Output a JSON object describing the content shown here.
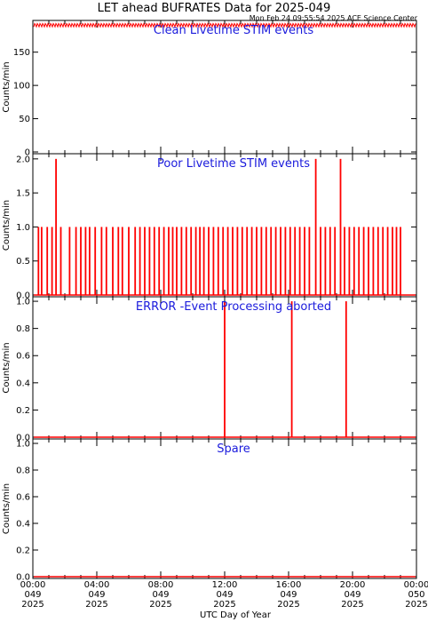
{
  "title": "LET ahead BUFRATES Data for 2025-049",
  "timestamp": "Mon Feb 24 09:55:54 2025 ACE Science Center",
  "xlabel": "UTC Day of Year",
  "colors": {
    "data": "#ff0000",
    "panel_label": "#1a1adc",
    "axes": "#000000"
  },
  "chart_data": [
    {
      "type": "line",
      "label": "Clean Livetime STIM events",
      "ylabel": "Counts/min",
      "ylim": [
        0,
        195
      ],
      "yticks": [
        0,
        50,
        100,
        150
      ],
      "ytick_labels": [
        "0",
        "50",
        "100",
        "150"
      ],
      "xlim_hours": [
        0,
        24
      ],
      "baseline": 191,
      "noise_band": [
        188,
        193
      ],
      "spikes": []
    },
    {
      "type": "line",
      "label": "Poor Livetime STIM events",
      "ylabel": "Counts/min",
      "ylim": [
        0,
        2.05
      ],
      "yticks": [
        0,
        0.5,
        1.0,
        1.5,
        2.0
      ],
      "ytick_labels": [
        "0.0",
        "0.5",
        "1.0",
        "1.5",
        "2.0"
      ],
      "xlim_hours": [
        0,
        24
      ],
      "baseline": 0,
      "spikes": [
        {
          "hour": 0.35,
          "value": 1
        },
        {
          "hour": 0.55,
          "value": 1
        },
        {
          "hour": 0.9,
          "value": 1
        },
        {
          "hour": 1.2,
          "value": 1
        },
        {
          "hour": 1.45,
          "value": 2
        },
        {
          "hour": 1.75,
          "value": 1
        },
        {
          "hour": 2.3,
          "value": 1
        },
        {
          "hour": 2.7,
          "value": 1
        },
        {
          "hour": 3.0,
          "value": 1
        },
        {
          "hour": 3.3,
          "value": 1
        },
        {
          "hour": 3.55,
          "value": 1
        },
        {
          "hour": 3.9,
          "value": 1
        },
        {
          "hour": 4.3,
          "value": 1
        },
        {
          "hour": 4.6,
          "value": 1
        },
        {
          "hour": 5.0,
          "value": 1
        },
        {
          "hour": 5.35,
          "value": 1
        },
        {
          "hour": 5.6,
          "value": 1
        },
        {
          "hour": 6.0,
          "value": 1
        },
        {
          "hour": 6.4,
          "value": 1
        },
        {
          "hour": 6.7,
          "value": 1
        },
        {
          "hour": 7.0,
          "value": 1
        },
        {
          "hour": 7.3,
          "value": 1
        },
        {
          "hour": 7.6,
          "value": 1
        },
        {
          "hour": 7.9,
          "value": 1
        },
        {
          "hour": 8.2,
          "value": 1
        },
        {
          "hour": 8.5,
          "value": 1
        },
        {
          "hour": 8.75,
          "value": 1
        },
        {
          "hour": 9.0,
          "value": 1
        },
        {
          "hour": 9.3,
          "value": 1
        },
        {
          "hour": 9.6,
          "value": 1
        },
        {
          "hour": 9.9,
          "value": 1
        },
        {
          "hour": 10.2,
          "value": 1
        },
        {
          "hour": 10.45,
          "value": 1
        },
        {
          "hour": 10.7,
          "value": 1
        },
        {
          "hour": 11.0,
          "value": 1
        },
        {
          "hour": 11.3,
          "value": 1
        },
        {
          "hour": 11.6,
          "value": 1
        },
        {
          "hour": 11.9,
          "value": 1
        },
        {
          "hour": 12.2,
          "value": 1
        },
        {
          "hour": 12.5,
          "value": 1
        },
        {
          "hour": 12.8,
          "value": 1
        },
        {
          "hour": 13.1,
          "value": 1
        },
        {
          "hour": 13.4,
          "value": 1
        },
        {
          "hour": 13.7,
          "value": 1
        },
        {
          "hour": 14.0,
          "value": 1
        },
        {
          "hour": 14.3,
          "value": 1
        },
        {
          "hour": 14.6,
          "value": 1
        },
        {
          "hour": 14.9,
          "value": 1
        },
        {
          "hour": 15.2,
          "value": 1
        },
        {
          "hour": 15.5,
          "value": 1
        },
        {
          "hour": 15.8,
          "value": 1
        },
        {
          "hour": 16.1,
          "value": 1
        },
        {
          "hour": 16.4,
          "value": 1
        },
        {
          "hour": 16.7,
          "value": 1
        },
        {
          "hour": 17.0,
          "value": 1
        },
        {
          "hour": 17.3,
          "value": 1
        },
        {
          "hour": 17.7,
          "value": 2
        },
        {
          "hour": 18.0,
          "value": 1
        },
        {
          "hour": 18.3,
          "value": 1
        },
        {
          "hour": 18.6,
          "value": 1
        },
        {
          "hour": 18.9,
          "value": 1
        },
        {
          "hour": 19.25,
          "value": 2
        },
        {
          "hour": 19.5,
          "value": 1
        },
        {
          "hour": 19.8,
          "value": 1
        },
        {
          "hour": 20.1,
          "value": 1
        },
        {
          "hour": 20.4,
          "value": 1
        },
        {
          "hour": 20.7,
          "value": 1
        },
        {
          "hour": 21.0,
          "value": 1
        },
        {
          "hour": 21.3,
          "value": 1
        },
        {
          "hour": 21.6,
          "value": 1
        },
        {
          "hour": 21.9,
          "value": 1
        },
        {
          "hour": 22.2,
          "value": 1
        },
        {
          "hour": 22.5,
          "value": 1
        },
        {
          "hour": 22.75,
          "value": 1
        },
        {
          "hour": 23.0,
          "value": 1
        }
      ]
    },
    {
      "type": "line",
      "label": "ERROR -Event Processing aborted",
      "ylabel": "Counts/min",
      "ylim": [
        0,
        1.02
      ],
      "yticks": [
        0,
        0.2,
        0.4,
        0.6,
        0.8,
        1.0
      ],
      "ytick_labels": [
        "0.0",
        "0.2",
        "0.4",
        "0.6",
        "0.8",
        "1.0"
      ],
      "xlim_hours": [
        0,
        24
      ],
      "baseline": 0,
      "spikes": [
        {
          "hour": 12.0,
          "value": 1
        },
        {
          "hour": 16.2,
          "value": 1
        },
        {
          "hour": 19.6,
          "value": 1
        }
      ]
    },
    {
      "type": "line",
      "label": "Spare",
      "ylabel": "Counts/min",
      "ylim": [
        0,
        1.02
      ],
      "yticks": [
        0,
        0.2,
        0.4,
        0.6,
        0.8,
        1.0
      ],
      "ytick_labels": [
        "0.0",
        "0.2",
        "0.4",
        "0.6",
        "0.8",
        "1.0"
      ],
      "xlim_hours": [
        0,
        24
      ],
      "baseline": 0,
      "spikes": []
    }
  ],
  "x_ticks": [
    {
      "hour": 0,
      "time": "00:00",
      "doy": "049",
      "year": "2025"
    },
    {
      "hour": 4,
      "time": "04:00",
      "doy": "049",
      "year": "2025"
    },
    {
      "hour": 8,
      "time": "08:00",
      "doy": "049",
      "year": "2025"
    },
    {
      "hour": 12,
      "time": "12:00",
      "doy": "049",
      "year": "2025"
    },
    {
      "hour": 16,
      "time": "16:00",
      "doy": "049",
      "year": "2025"
    },
    {
      "hour": 20,
      "time": "20:00",
      "doy": "049",
      "year": "2025"
    },
    {
      "hour": 24,
      "time": "00:00",
      "doy": "050",
      "year": "2025"
    }
  ]
}
